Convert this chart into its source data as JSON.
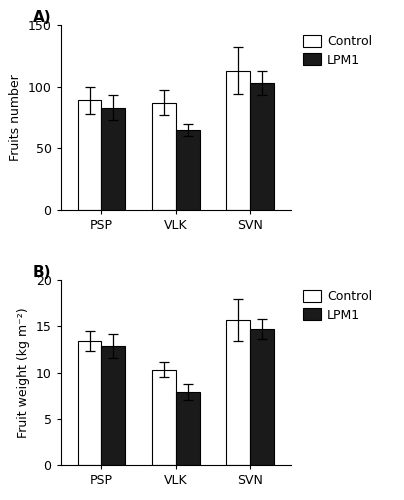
{
  "panel_A": {
    "label": "A)",
    "categories": [
      "PSP",
      "VLK",
      "SVN"
    ],
    "control_values": [
      89,
      87,
      113
    ],
    "lpm1_values": [
      83,
      65,
      103
    ],
    "control_errors": [
      11,
      10,
      19
    ],
    "lpm1_errors": [
      10,
      5,
      10
    ],
    "ylabel": "Fruits number",
    "ylim": [
      0,
      150
    ],
    "yticks": [
      0,
      50,
      100,
      150
    ]
  },
  "panel_B": {
    "label": "B)",
    "categories": [
      "PSP",
      "VLK",
      "SVN"
    ],
    "control_values": [
      13.4,
      10.3,
      15.7
    ],
    "lpm1_values": [
      12.9,
      7.9,
      14.7
    ],
    "control_errors": [
      1.1,
      0.8,
      2.3
    ],
    "lpm1_errors": [
      1.3,
      0.9,
      1.1
    ],
    "ylabel": "Fruit weight (kg m⁻²)",
    "ylim": [
      0,
      20
    ],
    "yticks": [
      0,
      5,
      10,
      15,
      20
    ]
  },
  "bar_width": 0.32,
  "control_color": "#ffffff",
  "lpm1_color": "#1a1a1a",
  "edge_color": "#000000",
  "legend_labels": [
    "Control",
    "LPM1"
  ],
  "figure_bg": "#ffffff",
  "font_size": 10,
  "label_font_size": 9,
  "tick_font_size": 9,
  "legend_font_size": 9
}
